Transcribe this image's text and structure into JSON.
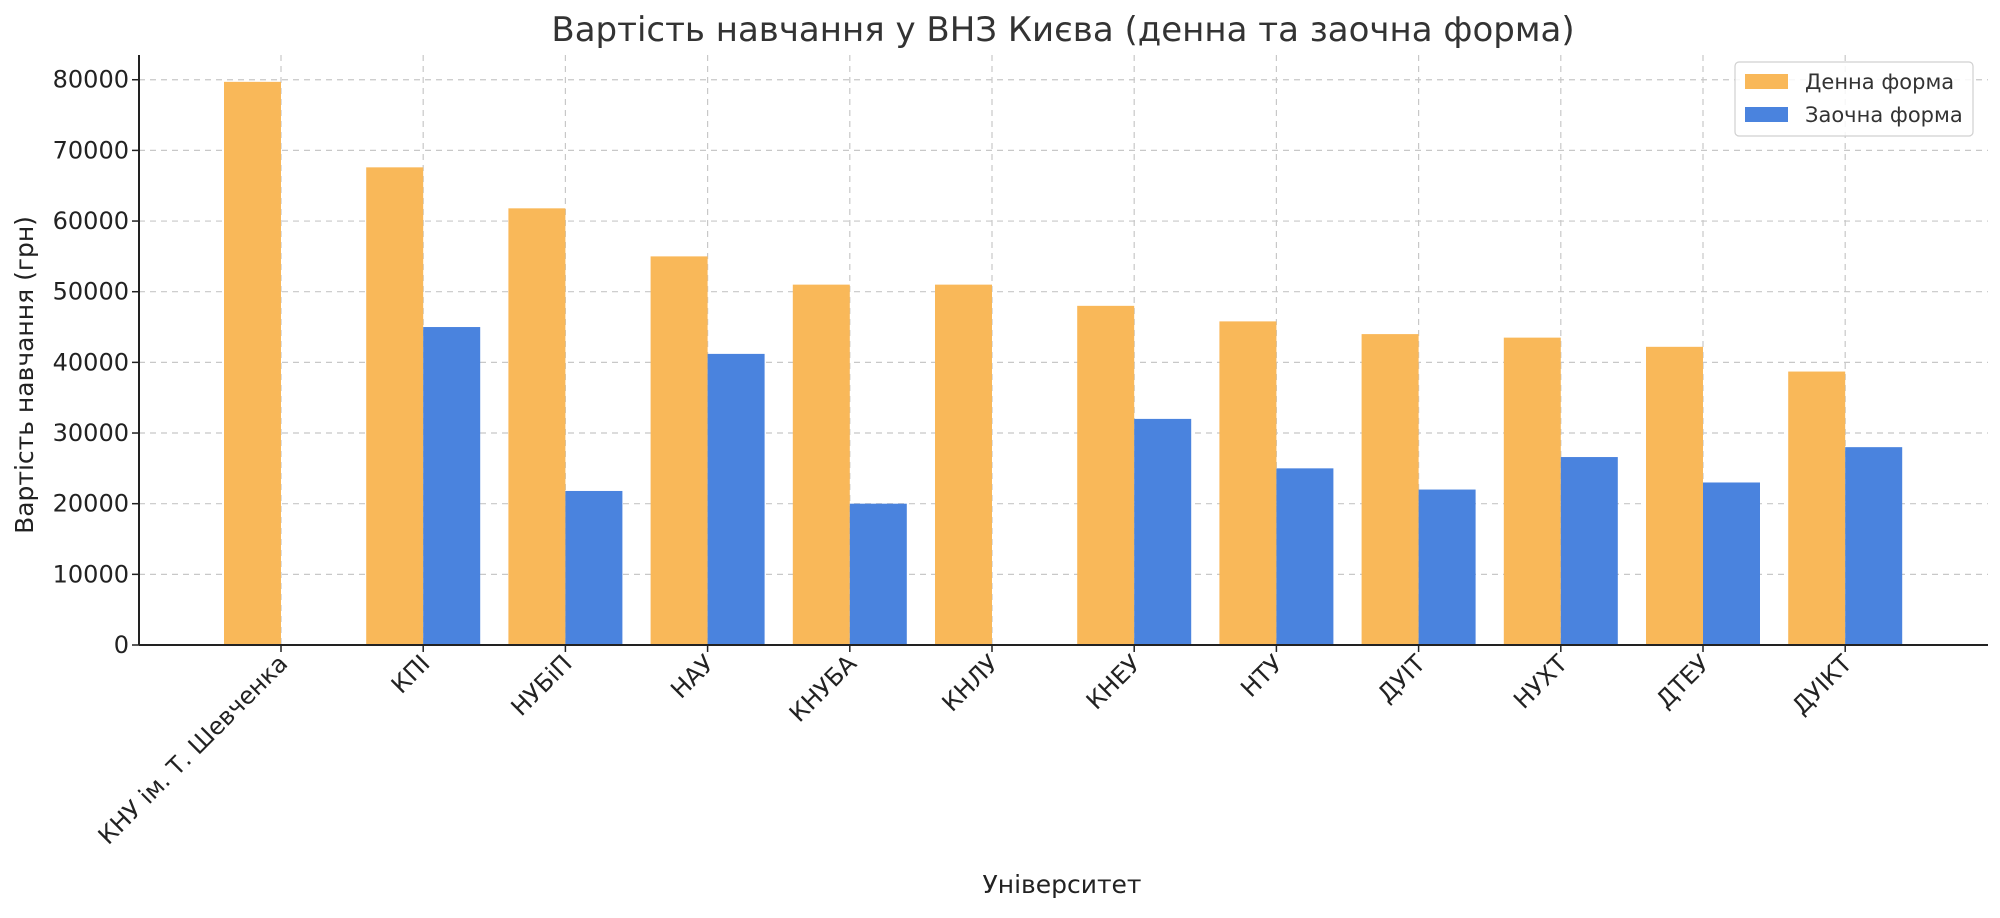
{
  "chart_data": {
    "type": "bar",
    "title": "Вартість навчання у ВНЗ Києва (денна та заочна форма)",
    "xlabel": "Університет",
    "ylabel": "Вартість навчання (грн)",
    "categories": [
      "КНУ ім. Т. Шевченка",
      "КПІ",
      "НУБіП",
      "НАУ",
      "КНУБА",
      "КНЛУ",
      "КНЕУ",
      "НТУ",
      "ДУІТ",
      "НУХТ",
      "ДТЕУ",
      "ДУІКТ"
    ],
    "series": [
      {
        "name": "Денна форма",
        "color": "#F9B859",
        "values": [
          79700,
          67600,
          61800,
          55000,
          51000,
          51000,
          48000,
          45800,
          44000,
          43500,
          42200,
          38700
        ]
      },
      {
        "name": "Заочна форма",
        "color": "#4A83DE",
        "values": [
          0,
          45000,
          21800,
          41200,
          20000,
          0,
          32000,
          25000,
          22000,
          26600,
          23000,
          28000
        ]
      }
    ],
    "ylim": [
      0,
      83500
    ],
    "yticks": [
      0,
      10000,
      20000,
      30000,
      40000,
      50000,
      60000,
      70000,
      80000
    ],
    "grid": true,
    "legend": "top-right"
  }
}
